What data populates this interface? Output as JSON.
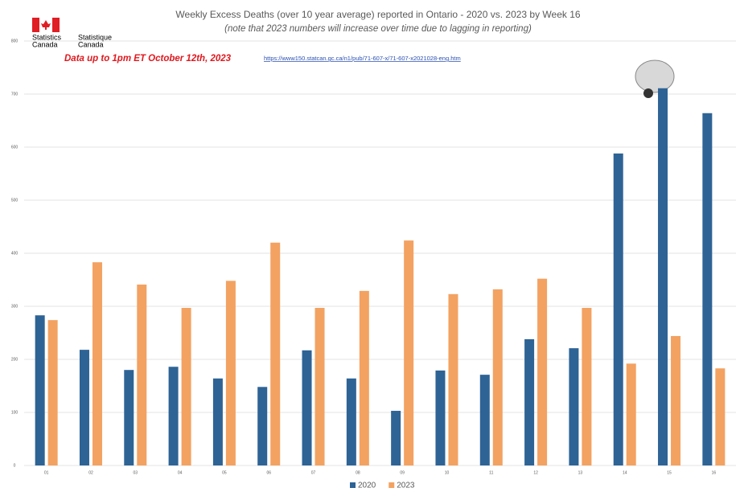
{
  "chart_data": {
    "type": "bar",
    "title": "Weekly Excess Deaths (over 10 year average) reported in Ontario - 2020 vs. 2023 by Week 16",
    "subtitle": "(note that 2023 numbers will increase over time due to lagging in reporting)",
    "annotation": "Data up to 1pm ET October 12th, 2023",
    "source_url": "https://www150.statcan.gc.ca/n1/pub/71-607-x/71-607-x2021028-eng.htm",
    "logo": {
      "en": [
        "Statistics",
        "Canada"
      ],
      "fr": [
        "Statistique",
        "Canada"
      ]
    },
    "categories": [
      "01",
      "02",
      "03",
      "04",
      "05",
      "06",
      "07",
      "08",
      "09",
      "10",
      "11",
      "12",
      "13",
      "14",
      "15",
      "16"
    ],
    "series": [
      {
        "name": "2020",
        "color": "#2e6395",
        "values": [
          283,
          218,
          180,
          186,
          164,
          148,
          217,
          164,
          103,
          179,
          171,
          238,
          221,
          588,
          711,
          664
        ]
      },
      {
        "name": "2023",
        "color": "#f3a262",
        "values": [
          274,
          383,
          341,
          297,
          348,
          420,
          297,
          329,
          424,
          323,
          332,
          352,
          297,
          192,
          244,
          183
        ]
      }
    ],
    "ylim": [
      0,
      800
    ],
    "yticks": [
      0,
      100,
      200,
      300,
      400,
      500,
      600,
      700,
      800
    ],
    "grid": true,
    "legend": "bottom"
  }
}
